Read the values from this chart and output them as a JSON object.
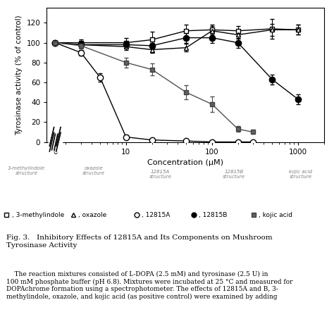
{
  "xlabel": "Concentration (μM)",
  "ylabel": "Tyrosinase activity (% of control)",
  "ylim": [
    0,
    135
  ],
  "yticks": [
    0,
    20,
    40,
    60,
    80,
    100,
    120
  ],
  "series": {
    "3methylindole": {
      "x": [
        1.5,
        3,
        10,
        20,
        50,
        100,
        200,
        500,
        1000
      ],
      "y": [
        100,
        100,
        100,
        103,
        112,
        113,
        112,
        114,
        113
      ],
      "yerr": [
        2,
        3,
        5,
        8,
        6,
        5,
        5,
        10,
        5
      ],
      "marker": "s",
      "mfc": "white",
      "mec": "black",
      "color": "black",
      "ms": 5,
      "lw": 1.0
    },
    "oxazole": {
      "x": [
        1.5,
        3,
        10,
        20,
        50,
        100,
        200,
        500,
        1000
      ],
      "y": [
        100,
        98,
        96,
        93,
        95,
        112,
        108,
        113,
        113
      ],
      "yerr": [
        2,
        3,
        3,
        3,
        4,
        5,
        4,
        6,
        5
      ],
      "marker": "^",
      "mfc": "white",
      "mec": "black",
      "color": "black",
      "ms": 5,
      "lw": 1.0
    },
    "12815A": {
      "x": [
        1.5,
        3,
        5,
        10,
        20,
        50,
        100,
        200,
        300
      ],
      "y": [
        100,
        90,
        65,
        5,
        2,
        1,
        0,
        0,
        0
      ],
      "yerr": [
        2,
        3,
        4,
        2,
        1,
        1,
        0,
        0,
        0
      ],
      "marker": "o",
      "mfc": "white",
      "mec": "black",
      "color": "black",
      "ms": 6,
      "lw": 1.0
    },
    "12815B": {
      "x": [
        1.5,
        3,
        10,
        20,
        50,
        100,
        200,
        500,
        1000
      ],
      "y": [
        100,
        98,
        98,
        97,
        105,
        105,
        100,
        63,
        43
      ],
      "yerr": [
        2,
        3,
        3,
        3,
        5,
        5,
        5,
        5,
        5
      ],
      "marker": "o",
      "mfc": "black",
      "mec": "black",
      "color": "black",
      "ms": 6,
      "lw": 1.0
    },
    "kojic_acid": {
      "x": [
        1.5,
        3,
        10,
        20,
        50,
        100,
        200,
        300
      ],
      "y": [
        100,
        97,
        80,
        73,
        50,
        38,
        13,
        10
      ],
      "yerr": [
        2,
        3,
        5,
        6,
        7,
        8,
        3,
        2
      ],
      "marker": "s",
      "mfc": "#606060",
      "mec": "#404040",
      "color": "#505050",
      "ms": 5,
      "lw": 1.0
    }
  },
  "legend_items": [
    {
      "symbol": "s",
      "mfc": "white",
      "mec": "black",
      "color": "black",
      "label": " 3-methylindole"
    },
    {
      "symbol": "^",
      "mfc": "white",
      "mec": "black",
      "color": "black",
      "label": " oxazole"
    },
    {
      "symbol": "o",
      "mfc": "white",
      "mec": "black",
      "color": "black",
      "label": " 12815A"
    },
    {
      "symbol": "o",
      "mfc": "black",
      "mec": "black",
      "color": "black",
      "label": " 12815B"
    },
    {
      "symbol": "s",
      "mfc": "#606060",
      "mec": "#404040",
      "color": "#505050",
      "label": " kojic acid"
    }
  ],
  "fig_caption": "Fig. 3.   Inhibitory Effects of 12815A and Its Components on Mushroom\nTyrosinase Activity",
  "body_text": "    The reaction mixtures consisted of L-DOPA (2.5 mM) and tyrosinase (2.5 U) in\n100 mM phosphate buffer (pH 6.8). Mixtures were incubated at 25 °C and measured for\nDOPAchrome formation using a spectrophotometer. The effects of 12815A and B, 3-\nmethylindole, oxazole, and kojic acid (as positive control) were examined by adding"
}
